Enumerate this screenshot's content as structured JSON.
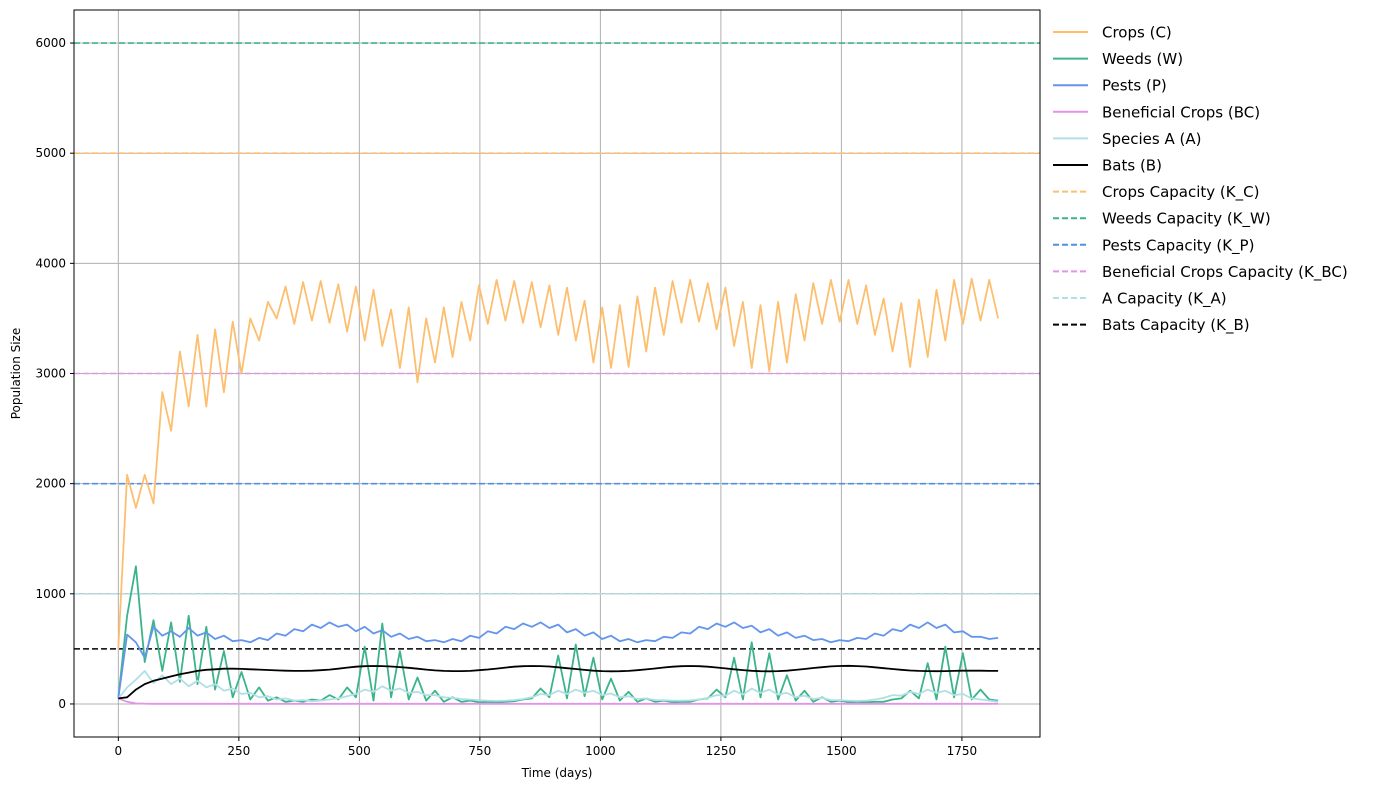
{
  "chart_data": {
    "type": "line",
    "title": "",
    "xlabel": "Time (days)",
    "ylabel": "Population Size",
    "xlim": [
      -92,
      1912
    ],
    "ylim": [
      -300,
      6300
    ],
    "xticks": [
      0,
      250,
      500,
      750,
      1000,
      1250,
      1500,
      1750
    ],
    "yticks": [
      0,
      1000,
      2000,
      3000,
      4000,
      5000,
      6000
    ],
    "grid": true,
    "legend_position": "outside-right-top",
    "series": [
      {
        "name": "Crops (C)",
        "color": "#fdbf6f",
        "style": "solid",
        "x_start": 0,
        "x_end": 1825,
        "values": [
          500,
          2080,
          1780,
          2080,
          1820,
          2830,
          2480,
          3200,
          2700,
          3350,
          2700,
          3400,
          2830,
          3470,
          3000,
          3500,
          3300,
          3650,
          3500,
          3790,
          3450,
          3830,
          3480,
          3840,
          3460,
          3810,
          3380,
          3790,
          3300,
          3760,
          3250,
          3580,
          3050,
          3600,
          2920,
          3500,
          3100,
          3600,
          3150,
          3650,
          3300,
          3800,
          3450,
          3850,
          3480,
          3840,
          3460,
          3830,
          3420,
          3800,
          3350,
          3780,
          3300,
          3660,
          3100,
          3600,
          3050,
          3620,
          3060,
          3700,
          3200,
          3780,
          3350,
          3840,
          3460,
          3850,
          3470,
          3820,
          3400,
          3780,
          3250,
          3650,
          3050,
          3620,
          3020,
          3650,
          3100,
          3720,
          3300,
          3820,
          3450,
          3850,
          3470,
          3850,
          3450,
          3800,
          3350,
          3680,
          3200,
          3640,
          3060,
          3670,
          3150,
          3760,
          3300,
          3850,
          3450,
          3860,
          3480,
          3850,
          3500
        ]
      },
      {
        "name": "Weeds (W)",
        "color": "#3cb48a",
        "style": "solid",
        "x_start": 0,
        "x_end": 1825,
        "values": [
          50,
          800,
          1250,
          380,
          760,
          300,
          740,
          200,
          800,
          180,
          700,
          130,
          480,
          60,
          290,
          40,
          150,
          30,
          60,
          20,
          30,
          20,
          40,
          30,
          80,
          40,
          150,
          60,
          520,
          30,
          730,
          60,
          480,
          40,
          240,
          30,
          120,
          20,
          60,
          20,
          30,
          15,
          20,
          15,
          20,
          25,
          40,
          50,
          140,
          60,
          440,
          50,
          540,
          70,
          420,
          40,
          230,
          30,
          110,
          20,
          50,
          20,
          30,
          15,
          20,
          20,
          40,
          50,
          130,
          60,
          420,
          40,
          560,
          60,
          460,
          40,
          260,
          30,
          120,
          20,
          60,
          20,
          30,
          15,
          20,
          15,
          20,
          20,
          40,
          50,
          120,
          50,
          370,
          40,
          520,
          60,
          460,
          40,
          130,
          40,
          30
        ]
      },
      {
        "name": "Pests (P)",
        "color": "#6495ed",
        "style": "solid",
        "x_start": 0,
        "x_end": 1825,
        "values": [
          50,
          630,
          560,
          420,
          700,
          620,
          660,
          610,
          690,
          620,
          650,
          590,
          620,
          570,
          580,
          560,
          600,
          580,
          640,
          620,
          680,
          660,
          720,
          690,
          740,
          700,
          720,
          660,
          700,
          640,
          670,
          610,
          640,
          590,
          610,
          570,
          580,
          560,
          590,
          570,
          620,
          600,
          660,
          640,
          700,
          680,
          730,
          700,
          740,
          690,
          720,
          650,
          680,
          620,
          650,
          590,
          620,
          570,
          590,
          560,
          580,
          570,
          610,
          600,
          650,
          640,
          700,
          680,
          730,
          700,
          740,
          690,
          710,
          650,
          680,
          620,
          650,
          600,
          620,
          580,
          590,
          560,
          580,
          570,
          600,
          590,
          640,
          620,
          680,
          660,
          720,
          690,
          740,
          690,
          720,
          650,
          660,
          610,
          610,
          590,
          600
        ]
      },
      {
        "name": "Beneficial Crops (BC)",
        "color": "#e194e8",
        "style": "solid",
        "x_start": 0,
        "x_end": 1825,
        "values": [
          50,
          20,
          5,
          2,
          1,
          1,
          1,
          1,
          1,
          1,
          1,
          1,
          1,
          1,
          1,
          1,
          1,
          1,
          1,
          1,
          1,
          1,
          1,
          1,
          1,
          1,
          1,
          1,
          1,
          1,
          1,
          1,
          1,
          1,
          1,
          1,
          1,
          1,
          1,
          1,
          1,
          1,
          1,
          1,
          1,
          1,
          1,
          1,
          1,
          1,
          1,
          1,
          1,
          1,
          1,
          1,
          1,
          1,
          1,
          1,
          1,
          1,
          1,
          1,
          1,
          1,
          1,
          1,
          1,
          1,
          1,
          1,
          1,
          1,
          1,
          1,
          1,
          1,
          1,
          1,
          1,
          1,
          1,
          1,
          1,
          1,
          1,
          1,
          1,
          1,
          1,
          1,
          1,
          1,
          1,
          1,
          1,
          1,
          1,
          1,
          1
        ]
      },
      {
        "name": "Species A (A)",
        "color": "#b0e0e6",
        "style": "solid",
        "x_start": 0,
        "x_end": 1825,
        "values": [
          50,
          150,
          220,
          300,
          190,
          260,
          180,
          230,
          160,
          210,
          150,
          180,
          120,
          140,
          90,
          100,
          60,
          70,
          40,
          50,
          30,
          35,
          25,
          30,
          40,
          50,
          70,
          90,
          130,
          110,
          160,
          120,
          140,
          100,
          110,
          80,
          80,
          60,
          55,
          45,
          40,
          35,
          30,
          28,
          30,
          35,
          45,
          60,
          90,
          80,
          120,
          90,
          130,
          100,
          120,
          80,
          95,
          60,
          70,
          45,
          50,
          35,
          35,
          30,
          30,
          32,
          40,
          55,
          80,
          75,
          120,
          85,
          140,
          100,
          130,
          85,
          100,
          60,
          75,
          45,
          55,
          35,
          35,
          30,
          28,
          30,
          40,
          55,
          80,
          75,
          110,
          90,
          130,
          100,
          120,
          80,
          90,
          50,
          40,
          30,
          20
        ]
      },
      {
        "name": "Bats (B)",
        "color": "#000000",
        "style": "solid",
        "x_start": 0,
        "x_end": 1825,
        "values": [
          50,
          60,
          130,
          180,
          210,
          230,
          250,
          270,
          285,
          300,
          310,
          315,
          320,
          320,
          318,
          315,
          312,
          308,
          305,
          302,
          300,
          300,
          302,
          306,
          312,
          320,
          330,
          338,
          343,
          345,
          344,
          340,
          335,
          328,
          320,
          312,
          305,
          300,
          298,
          298,
          300,
          306,
          313,
          321,
          330,
          338,
          343,
          345,
          344,
          340,
          333,
          325,
          317,
          309,
          302,
          298,
          296,
          297,
          300,
          306,
          314,
          322,
          331,
          338,
          343,
          345,
          343,
          338,
          331,
          323,
          315,
          307,
          301,
          297,
          296,
          298,
          302,
          309,
          317,
          326,
          334,
          341,
          345,
          346,
          344,
          340,
          333,
          325,
          317,
          310,
          304,
          300,
          298,
          297,
          298,
          300,
          302,
          303,
          302,
          300,
          300
        ]
      },
      {
        "name": "Crops Capacity (K_C)",
        "color": "#fdbf6f",
        "style": "dashed",
        "constant": 5000
      },
      {
        "name": "Weeds Capacity (K_W)",
        "color": "#3cb48a",
        "style": "dashed",
        "constant": 6000
      },
      {
        "name": "Pests Capacity (K_P)",
        "color": "#4f8fe6",
        "style": "dashed",
        "constant": 2000
      },
      {
        "name": "Beneficial Crops Capacity (K_BC)",
        "color": "#e194e8",
        "style": "dashed",
        "constant": 3000
      },
      {
        "name": "A Capacity (K_A)",
        "color": "#b0e0e6",
        "style": "dashed",
        "constant": 1000
      },
      {
        "name": "Bats Capacity (K_B)",
        "color": "#000000",
        "style": "dashed",
        "constant": 500
      }
    ]
  }
}
